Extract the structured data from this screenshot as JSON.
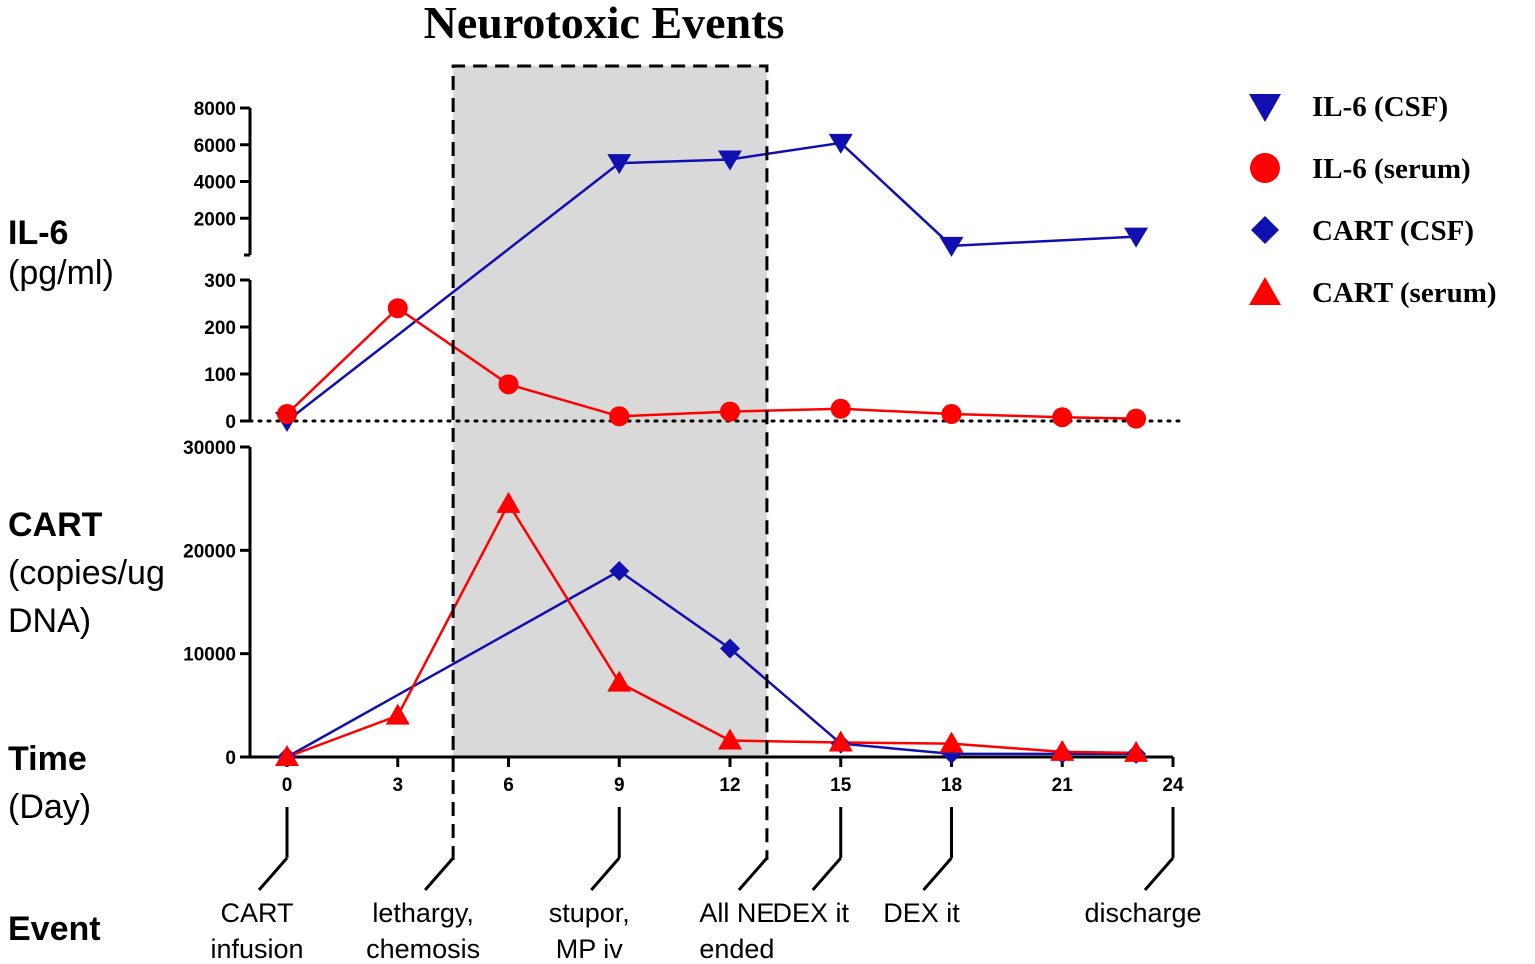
{
  "title": "Neurotoxic Events",
  "legend": [
    {
      "label": "IL-6 (CSF)",
      "shape": "triangle-down",
      "color": "#1010b0"
    },
    {
      "label": "IL-6 (serum)",
      "shape": "circle",
      "color": "#ff0000"
    },
    {
      "label": "CART (CSF)",
      "shape": "diamond",
      "color": "#1010b0"
    },
    {
      "label": "CART (serum)",
      "shape": "triangle-up",
      "color": "#ff0000"
    }
  ],
  "axis_labels": {
    "il6_title": "IL-6",
    "il6_unit": "(pg/ml)",
    "cart_title": "CART",
    "cart_unit_line1": "(copies/ug",
    "cart_unit_line2": "DNA)",
    "time_title": "Time",
    "time_unit": "(Day)",
    "event_title": "Event"
  },
  "events": [
    {
      "day": 0,
      "line1": "CART",
      "line2": "infusion"
    },
    {
      "day": 4.5,
      "line1": "lethargy,",
      "line2": "chemosis"
    },
    {
      "day": 9,
      "line1": "stupor,",
      "line2": "MP iv"
    },
    {
      "day": 13,
      "line1": "All NE",
      "line2": "ended"
    },
    {
      "day": 15,
      "line1": "DEX it",
      "line2": ""
    },
    {
      "day": 18,
      "line1": "DEX it",
      "line2": ""
    },
    {
      "day": 24,
      "line1": "discharge",
      "line2": ""
    }
  ],
  "chart_data": {
    "type": "line",
    "title": "Neurotoxic Events",
    "xlabel": "Time (Day)",
    "x_ticks": [
      0,
      3,
      6,
      9,
      12,
      15,
      18,
      21,
      24
    ],
    "xlim": [
      0,
      24
    ],
    "shaded_region": {
      "from_day": 4.5,
      "to_day": 13,
      "label": "Neurotoxic Events"
    },
    "il6_panel": {
      "ylabel": "IL-6 (pg/ml)",
      "broken_axis": true,
      "lower_ylim": [
        0,
        300
      ],
      "lower_ticks": [
        0,
        100,
        200,
        300
      ],
      "upper_ylim": [
        0,
        8000
      ],
      "upper_ticks": [
        2000,
        4000,
        6000,
        8000
      ],
      "zero_line": "dotted",
      "series": [
        {
          "name": "IL-6 (CSF)",
          "color": "#1010b0",
          "marker": "triangle-down",
          "x": [
            0,
            9,
            12,
            15,
            18,
            23
          ],
          "y": [
            0,
            5000,
            5200,
            6100,
            500,
            1000
          ]
        },
        {
          "name": "IL-6 (serum)",
          "color": "#ff0000",
          "marker": "circle",
          "x": [
            0,
            3,
            6,
            9,
            12,
            15,
            18,
            21,
            23
          ],
          "y": [
            15,
            240,
            78,
            10,
            20,
            26,
            15,
            8,
            5
          ]
        }
      ]
    },
    "cart_panel": {
      "ylabel": "CART (copies/ug DNA)",
      "ylim": [
        0,
        30000
      ],
      "ticks": [
        0,
        10000,
        20000,
        30000
      ],
      "series": [
        {
          "name": "CART (CSF)",
          "color": "#1010b0",
          "marker": "diamond",
          "x": [
            0,
            9,
            12,
            15,
            18,
            21,
            23
          ],
          "y": [
            0,
            18000,
            10500,
            1300,
            300,
            300,
            300
          ]
        },
        {
          "name": "CART (serum)",
          "color": "#ff0000",
          "marker": "triangle-up",
          "x": [
            0,
            3,
            6,
            9,
            12,
            15,
            18,
            21,
            23
          ],
          "y": [
            0,
            4000,
            24500,
            7200,
            1600,
            1400,
            1300,
            500,
            400
          ]
        }
      ]
    }
  }
}
